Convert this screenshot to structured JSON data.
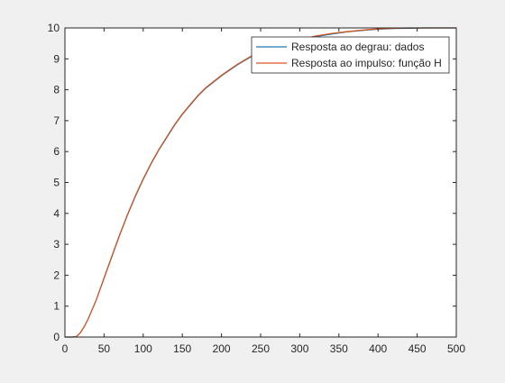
{
  "chart_data": {
    "type": "line",
    "title": "",
    "xlabel": "",
    "ylabel": "",
    "xlim": [
      0,
      500
    ],
    "ylim": [
      0,
      10
    ],
    "x_ticks": [
      0,
      50,
      100,
      150,
      200,
      250,
      300,
      350,
      400,
      450,
      500
    ],
    "y_ticks": [
      0,
      1,
      2,
      3,
      4,
      5,
      6,
      7,
      8,
      9,
      10
    ],
    "grid": false,
    "legend_position": "top-right",
    "series": [
      {
        "name": "Resposta ao degrau: dados",
        "color": "#1f77b4",
        "x": [
          0,
          10,
          15,
          20,
          25,
          30,
          40,
          50,
          60,
          70,
          80,
          90,
          100,
          110,
          120,
          130,
          140,
          150,
          160,
          170,
          180,
          190,
          200,
          220,
          240,
          260,
          280,
          300,
          320,
          340,
          360,
          380,
          400,
          420,
          440,
          460,
          480,
          500
        ],
        "y": [
          0,
          0,
          0.02,
          0.15,
          0.35,
          0.6,
          1.2,
          1.9,
          2.6,
          3.3,
          3.95,
          4.55,
          5.1,
          5.6,
          6.05,
          6.45,
          6.85,
          7.2,
          7.5,
          7.8,
          8.05,
          8.25,
          8.45,
          8.8,
          9.1,
          9.3,
          9.5,
          9.6,
          9.72,
          9.8,
          9.87,
          9.92,
          9.96,
          9.98,
          9.99,
          10,
          10,
          10
        ]
      },
      {
        "name": "Resposta ao impulso: função H",
        "color": "#d95319",
        "x": [
          0,
          10,
          15,
          20,
          25,
          30,
          40,
          50,
          60,
          70,
          80,
          90,
          100,
          110,
          120,
          130,
          140,
          150,
          160,
          170,
          180,
          190,
          200,
          220,
          240,
          260,
          280,
          300,
          320,
          340,
          360,
          380,
          400,
          420,
          440,
          460,
          480,
          500
        ],
        "y": [
          0,
          0,
          0.02,
          0.15,
          0.35,
          0.6,
          1.2,
          1.92,
          2.62,
          3.32,
          3.97,
          4.57,
          5.12,
          5.62,
          6.07,
          6.47,
          6.87,
          7.22,
          7.52,
          7.82,
          8.07,
          8.27,
          8.47,
          8.82,
          9.12,
          9.32,
          9.52,
          9.62,
          9.74,
          9.82,
          9.88,
          9.93,
          9.97,
          9.99,
          10,
          10,
          10,
          10
        ]
      }
    ]
  }
}
